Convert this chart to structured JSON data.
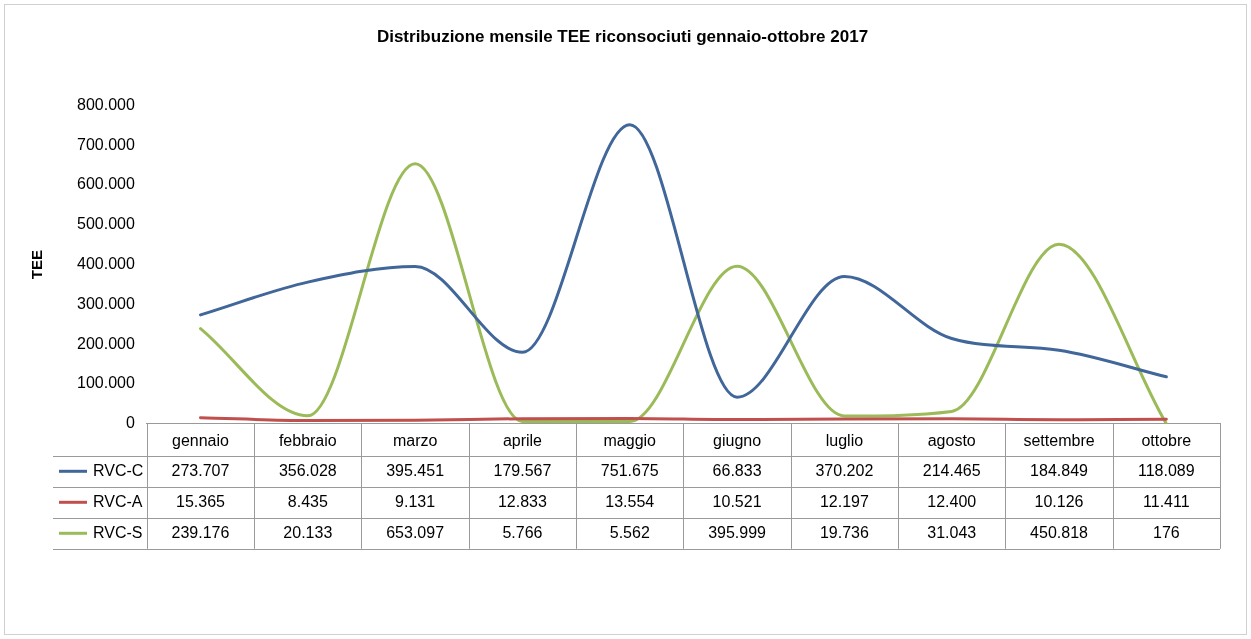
{
  "chart_data": {
    "type": "line",
    "title": "Distribuzione mensile TEE riconsociuti gennaio-ottobre 2017",
    "ylabel": "TEE",
    "categories": [
      "gennaio",
      "febbraio",
      "marzo",
      "aprile",
      "maggio",
      "giugno",
      "luglio",
      "agosto",
      "settembre",
      "ottobre"
    ],
    "series": [
      {
        "name": "RVC-C",
        "color": "#41679a",
        "values": [
          273707,
          356028,
          395451,
          179567,
          751675,
          66833,
          370202,
          214465,
          184849,
          118089
        ],
        "value_labels": [
          "273.707",
          "356.028",
          "395.451",
          "179.567",
          "751.675",
          "66.833",
          "370.202",
          "214.465",
          "184.849",
          "118.089"
        ]
      },
      {
        "name": "RVC-A",
        "color": "#c0504d",
        "values": [
          15365,
          8435,
          9131,
          12833,
          13554,
          10521,
          12197,
          12400,
          10126,
          11411
        ],
        "value_labels": [
          "15.365",
          "8.435",
          "9.131",
          "12.833",
          "13.554",
          "10.521",
          "12.197",
          "12.400",
          "10.126",
          "11.411"
        ]
      },
      {
        "name": "RVC-S",
        "color": "#9bbb59",
        "values": [
          239176,
          20133,
          653097,
          5766,
          5562,
          395999,
          19736,
          31043,
          450818,
          176
        ],
        "value_labels": [
          "239.176",
          "20.133",
          "653.097",
          "5.766",
          "5.562",
          "395.999",
          "19.736",
          "31.043",
          "450.818",
          "176"
        ]
      }
    ],
    "ylim": [
      0,
      800000
    ],
    "yticks": [
      {
        "value": 0,
        "label": "0"
      },
      {
        "value": 100000,
        "label": "100.000"
      },
      {
        "value": 200000,
        "label": "200.000"
      },
      {
        "value": 300000,
        "label": "300.000"
      },
      {
        "value": 400000,
        "label": "400.000"
      },
      {
        "value": 500000,
        "label": "500.000"
      },
      {
        "value": 600000,
        "label": "600.000"
      },
      {
        "value": 700000,
        "label": "700.000"
      },
      {
        "value": 800000,
        "label": "800.000"
      }
    ],
    "grid": false,
    "legend": "bottom",
    "marker": "none",
    "line_style": "solid"
  }
}
